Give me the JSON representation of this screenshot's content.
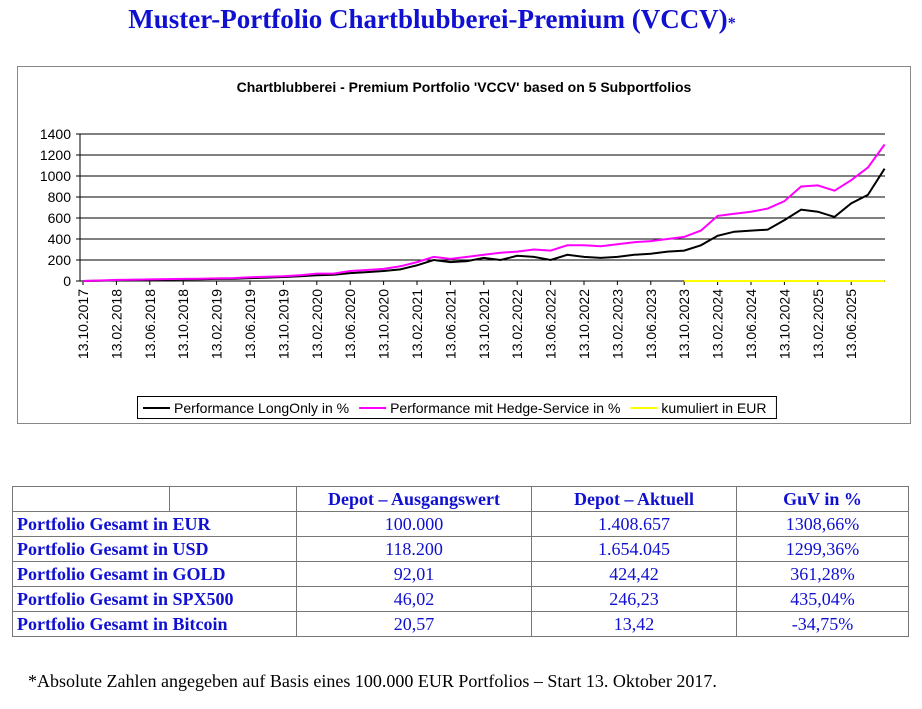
{
  "header": {
    "title": "Muster-Portfolio Chartblubberei-Premium (VCCV)",
    "title_mark": "*"
  },
  "chart_data": {
    "type": "line",
    "title": "Chartblubberei - Premium Portfolio 'VCCV' based on 5 Subportfolios",
    "categories": [
      "13.10.2017",
      null,
      "13.02.2018",
      null,
      "13.06.2018",
      null,
      "13.10.2018",
      null,
      "13.02.2019",
      null,
      "13.06.2019",
      null,
      "13.10.2019",
      null,
      "13.02.2020",
      null,
      "13.06.2020",
      null,
      "13.10.2020",
      null,
      "13.02.2021",
      null,
      "13.06.2021",
      null,
      "13.10.2021",
      null,
      "13.02.2022",
      null,
      "13.06.2022",
      null,
      "13.10.2022",
      null,
      "13.02.2023",
      null,
      "13.06.2023",
      null,
      "13.10.2023",
      null,
      "13.02.2024",
      null,
      "13.06.2024",
      null,
      "13.10.2024",
      null,
      "13.02.2025",
      null,
      "13.06.2025",
      null,
      null
    ],
    "series": [
      {
        "name": "Performance LongOnly in %",
        "color": "#000000",
        "values": [
          0,
          3,
          8,
          10,
          12,
          14,
          15,
          17,
          20,
          22,
          28,
          32,
          38,
          45,
          55,
          60,
          75,
          85,
          95,
          110,
          150,
          200,
          180,
          190,
          220,
          200,
          240,
          230,
          200,
          250,
          230,
          220,
          230,
          250,
          260,
          280,
          290,
          340,
          430,
          470,
          480,
          490,
          580,
          680,
          660,
          610,
          740,
          820,
          1070
        ]
      },
      {
        "name": "Performance mit Hedge-Service in %",
        "color": "#ff00ff",
        "values": [
          0,
          5,
          10,
          12,
          15,
          18,
          20,
          22,
          25,
          28,
          35,
          40,
          45,
          55,
          70,
          70,
          95,
          105,
          115,
          140,
          180,
          230,
          210,
          230,
          250,
          270,
          280,
          300,
          290,
          340,
          340,
          330,
          350,
          370,
          380,
          400,
          420,
          480,
          620,
          640,
          660,
          690,
          760,
          900,
          910,
          860,
          960,
          1080,
          1300
        ]
      },
      {
        "name": "kumuliert in EUR",
        "color": "#ffff00",
        "values": [
          null,
          null,
          null,
          null,
          null,
          null,
          null,
          null,
          null,
          null,
          null,
          null,
          null,
          null,
          null,
          null,
          null,
          null,
          null,
          null,
          null,
          null,
          null,
          null,
          null,
          null,
          null,
          null,
          null,
          null,
          null,
          null,
          null,
          null,
          null,
          null,
          0,
          0,
          0,
          0,
          0,
          0,
          0,
          0,
          0,
          0,
          0,
          0,
          0
        ]
      }
    ],
    "ylim": [
      0,
      1400
    ],
    "yticks": [
      0,
      200,
      400,
      600,
      800,
      1000,
      1200,
      1400
    ],
    "grid": true,
    "legend": "bottom"
  },
  "table": {
    "header": [
      "Depot – Ausgangswert",
      "Depot – Aktuell",
      "GuV in %"
    ],
    "rows": [
      [
        "Portfolio Gesamt in EUR",
        "100.000",
        "1.408.657",
        "1308,66%"
      ],
      [
        "Portfolio Gesamt in USD",
        "118.200",
        "1.654.045",
        "1299,36%"
      ],
      [
        "Portfolio Gesamt in GOLD",
        "92,01",
        "424,42",
        "361,28%"
      ],
      [
        "Portfolio Gesamt in SPX500",
        "46,02",
        "246,23",
        "435,04%"
      ],
      [
        "Portfolio Gesamt in Bitcoin",
        "20,57",
        "13,42",
        "-34,75%"
      ]
    ]
  },
  "footnote": "*Absolute Zahlen angegeben auf Basis eines 100.000 EUR Portfolios – Start 13. Oktober 2017."
}
